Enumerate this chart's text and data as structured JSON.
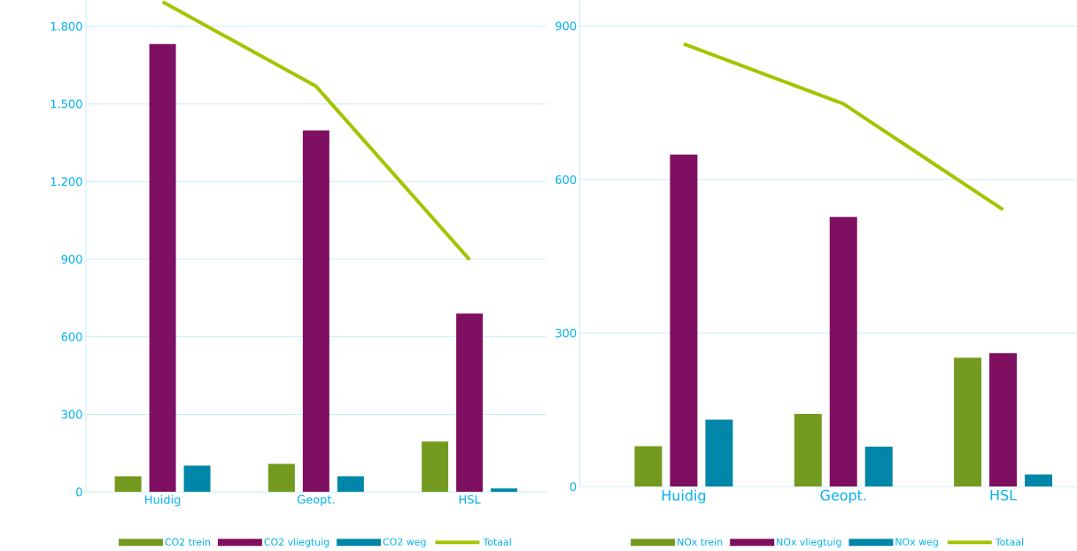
{
  "chart_data": [
    {
      "type": "bar",
      "categories": [
        "Huidig",
        "Geopt.",
        "HSL"
      ],
      "series": [
        {
          "name": "CO2 trein",
          "color": "#739a1e",
          "values": [
            61,
            109,
            195
          ]
        },
        {
          "name": "CO2 vliegtuig",
          "color": "#7f0f60",
          "values": [
            1732,
            1397,
            690
          ]
        },
        {
          "name": "CO2 weg",
          "color": "#0086a8",
          "values": [
            102,
            61,
            14
          ]
        },
        {
          "name": "Totaal",
          "color": "#a5c300",
          "type": "line",
          "values": [
            1895,
            1568,
            898
          ]
        }
      ],
      "ylim": [
        0,
        1900
      ],
      "yticks": [
        0,
        300,
        600,
        900,
        {
          "value": 1200,
          "label": "1.200"
        },
        {
          "value": 1500,
          "label": "1.500"
        },
        {
          "value": 1800,
          "label": "1.800"
        }
      ],
      "grid": "y",
      "legend": "bottom"
    },
    {
      "type": "bar",
      "categories": [
        "Huidig",
        "Geopt.",
        "HSL"
      ],
      "series": [
        {
          "name": "NOx trein",
          "color": "#739a1e",
          "values": [
            79,
            142,
            252
          ]
        },
        {
          "name": "NOx vliegtuig",
          "color": "#7f0f60",
          "values": [
            649,
            527,
            261
          ]
        },
        {
          "name": "NOx weg",
          "color": "#0086a8",
          "values": [
            131,
            78,
            24
          ]
        },
        {
          "name": "Totaal",
          "color": "#a5c300",
          "type": "line",
          "values": [
            865,
            748,
            541
          ]
        }
      ],
      "ylim": [
        0,
        950
      ],
      "yticks": [
        0,
        300,
        600,
        900
      ],
      "grid": "y",
      "legend": "bottom"
    }
  ]
}
